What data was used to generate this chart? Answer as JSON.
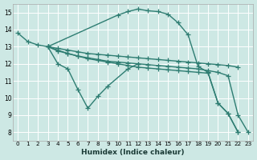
{
  "xlabel": "Humidex (Indice chaleur)",
  "xlim": [
    -0.5,
    23.5
  ],
  "ylim": [
    7.5,
    15.5
  ],
  "xticks": [
    0,
    1,
    2,
    3,
    4,
    5,
    6,
    7,
    8,
    9,
    10,
    11,
    12,
    13,
    14,
    15,
    16,
    17,
    18,
    19,
    20,
    21,
    22,
    23
  ],
  "yticks": [
    8,
    9,
    10,
    11,
    12,
    13,
    14,
    15
  ],
  "background_color": "#cde8e4",
  "grid_color": "#ffffff",
  "line_color": "#2e7d72",
  "marker": "+",
  "markersize": 4,
  "linewidth": 1.0,
  "lines": [
    {
      "x": [
        0,
        1,
        2,
        3,
        4,
        5,
        6,
        7,
        8,
        9,
        11,
        12
      ],
      "y": [
        13.8,
        13.3,
        13.1,
        13.0,
        12.0,
        11.7,
        10.5,
        9.4,
        10.1,
        10.7,
        11.7,
        12.0
      ]
    },
    {
      "x": [
        3,
        4,
        5,
        6,
        7,
        8,
        9,
        10,
        11,
        12,
        13,
        14,
        15,
        16,
        17,
        18,
        19,
        20,
        21,
        22
      ],
      "y": [
        13.0,
        12.9,
        12.8,
        12.7,
        12.6,
        12.55,
        12.5,
        12.45,
        12.4,
        12.35,
        12.3,
        12.25,
        12.2,
        12.15,
        12.1,
        12.05,
        12.0,
        11.95,
        11.9,
        11.8
      ]
    },
    {
      "x": [
        3,
        10,
        11,
        12,
        13,
        14,
        15,
        16,
        17,
        18,
        19,
        20,
        21,
        22
      ],
      "y": [
        13.0,
        14.85,
        15.05,
        15.2,
        15.1,
        15.05,
        14.9,
        14.4,
        13.7,
        11.85,
        11.5,
        9.7,
        9.1,
        8.0
      ]
    },
    {
      "x": [
        3,
        4,
        5,
        6,
        7,
        8,
        9,
        10,
        11,
        12,
        13,
        14,
        15,
        16,
        17,
        18,
        19,
        20,
        21,
        22,
        23
      ],
      "y": [
        13.0,
        12.75,
        12.6,
        12.45,
        12.35,
        12.25,
        12.15,
        12.1,
        12.05,
        12.0,
        11.95,
        11.9,
        11.85,
        11.8,
        11.75,
        11.7,
        11.6,
        11.5,
        11.3,
        9.0,
        8.0
      ]
    },
    {
      "comment": "Line5: from x=3,y=13 slowly declining to x=19,y=11.5, then x=20,y=9.7, x=21,y=9.1, x=22,y=8",
      "x": [
        3,
        4,
        5,
        6,
        7,
        8,
        9,
        10,
        11,
        12,
        13,
        14,
        15,
        16,
        17,
        18,
        19,
        20,
        21,
        22
      ],
      "y": [
        13.0,
        12.8,
        12.6,
        12.45,
        12.3,
        12.2,
        12.1,
        12.0,
        11.9,
        11.8,
        11.75,
        11.7,
        11.65,
        11.6,
        11.55,
        11.5,
        11.45,
        9.7,
        9.1,
        8.0
      ]
    }
  ]
}
